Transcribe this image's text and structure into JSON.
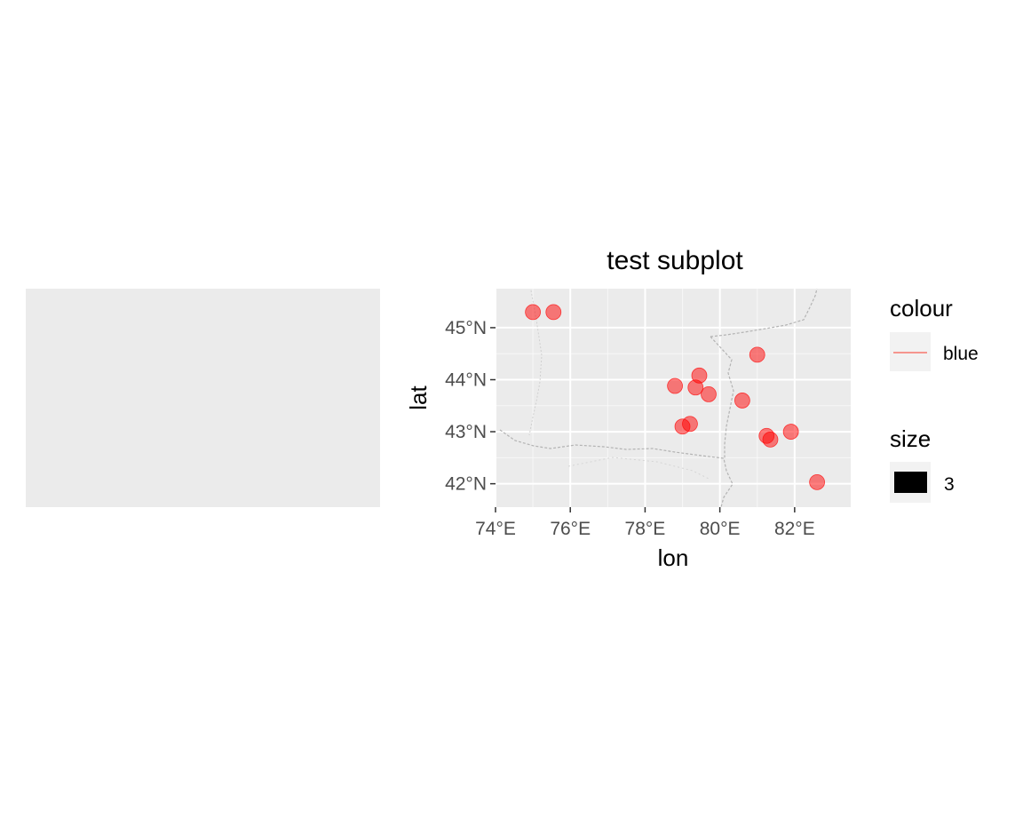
{
  "left_panel": {
    "background": "#ebebeb"
  },
  "chart_data": {
    "type": "scatter",
    "title": "test subplot",
    "xlabel": "lon",
    "ylabel": "lat",
    "xlim": [
      74.0,
      83.5
    ],
    "ylim": [
      41.55,
      45.75
    ],
    "x_ticks": [
      {
        "value": 74,
        "label": "74°E"
      },
      {
        "value": 76,
        "label": "76°E"
      },
      {
        "value": 78,
        "label": "78°E"
      },
      {
        "value": 80,
        "label": "80°E"
      },
      {
        "value": 82,
        "label": "82°E"
      }
    ],
    "y_ticks": [
      {
        "value": 42,
        "label": "42°N"
      },
      {
        "value": 43,
        "label": "43°N"
      },
      {
        "value": 44,
        "label": "44°N"
      },
      {
        "value": 45,
        "label": "45°N"
      }
    ],
    "grid": true,
    "panel_background": "#ebebeb",
    "grid_color": "#ffffff",
    "point_color": "#ff0000",
    "point_alpha": 0.5,
    "points": [
      {
        "lon": 75.0,
        "lat": 45.3
      },
      {
        "lon": 75.55,
        "lat": 45.3
      },
      {
        "lon": 81.0,
        "lat": 44.48
      },
      {
        "lon": 79.45,
        "lat": 44.08
      },
      {
        "lon": 78.8,
        "lat": 43.88
      },
      {
        "lon": 79.35,
        "lat": 43.85
      },
      {
        "lon": 79.7,
        "lat": 43.72
      },
      {
        "lon": 80.6,
        "lat": 43.6
      },
      {
        "lon": 79.0,
        "lat": 43.1
      },
      {
        "lon": 79.2,
        "lat": 43.15
      },
      {
        "lon": 81.25,
        "lat": 42.92
      },
      {
        "lon": 81.35,
        "lat": 42.85
      },
      {
        "lon": 81.9,
        "lat": 43.0
      },
      {
        "lon": 82.6,
        "lat": 42.03
      }
    ],
    "legend": {
      "placement": "right",
      "groups": [
        {
          "title": "colour",
          "key_type": "line",
          "label": "blue",
          "color": "#f8766d"
        },
        {
          "title": "size",
          "key_type": "rect",
          "label": "3",
          "color": "#000000"
        }
      ]
    }
  }
}
